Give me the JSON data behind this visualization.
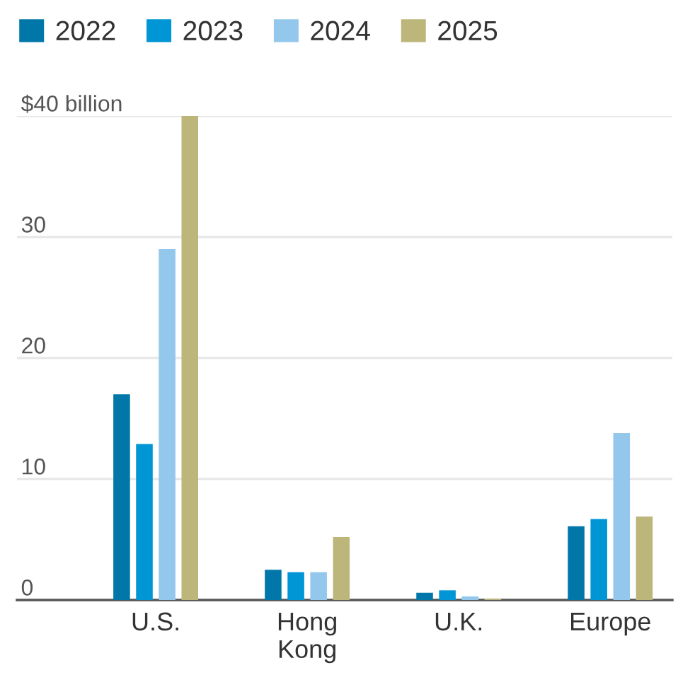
{
  "chart_data": {
    "type": "bar",
    "categories": [
      "U.S.",
      "Hong\nKong",
      "U.K.",
      "Europe"
    ],
    "series": [
      {
        "name": "2022",
        "color": "#0077a8",
        "values": [
          17.0,
          2.5,
          0.6,
          6.1
        ]
      },
      {
        "name": "2023",
        "color": "#0096d6",
        "values": [
          12.9,
          2.3,
          0.8,
          6.7
        ]
      },
      {
        "name": "2024",
        "color": "#93c8ec",
        "values": [
          29.0,
          2.3,
          0.3,
          13.8
        ]
      },
      {
        "name": "2025",
        "color": "#bdb67a",
        "values": [
          40.0,
          5.2,
          0.1,
          6.9
        ]
      }
    ],
    "ylim": [
      0,
      40
    ],
    "yticks": [
      0,
      10,
      20,
      30,
      {
        "value": 40,
        "label": "$40 billion"
      }
    ],
    "grid": "y",
    "legend": "top left"
  }
}
